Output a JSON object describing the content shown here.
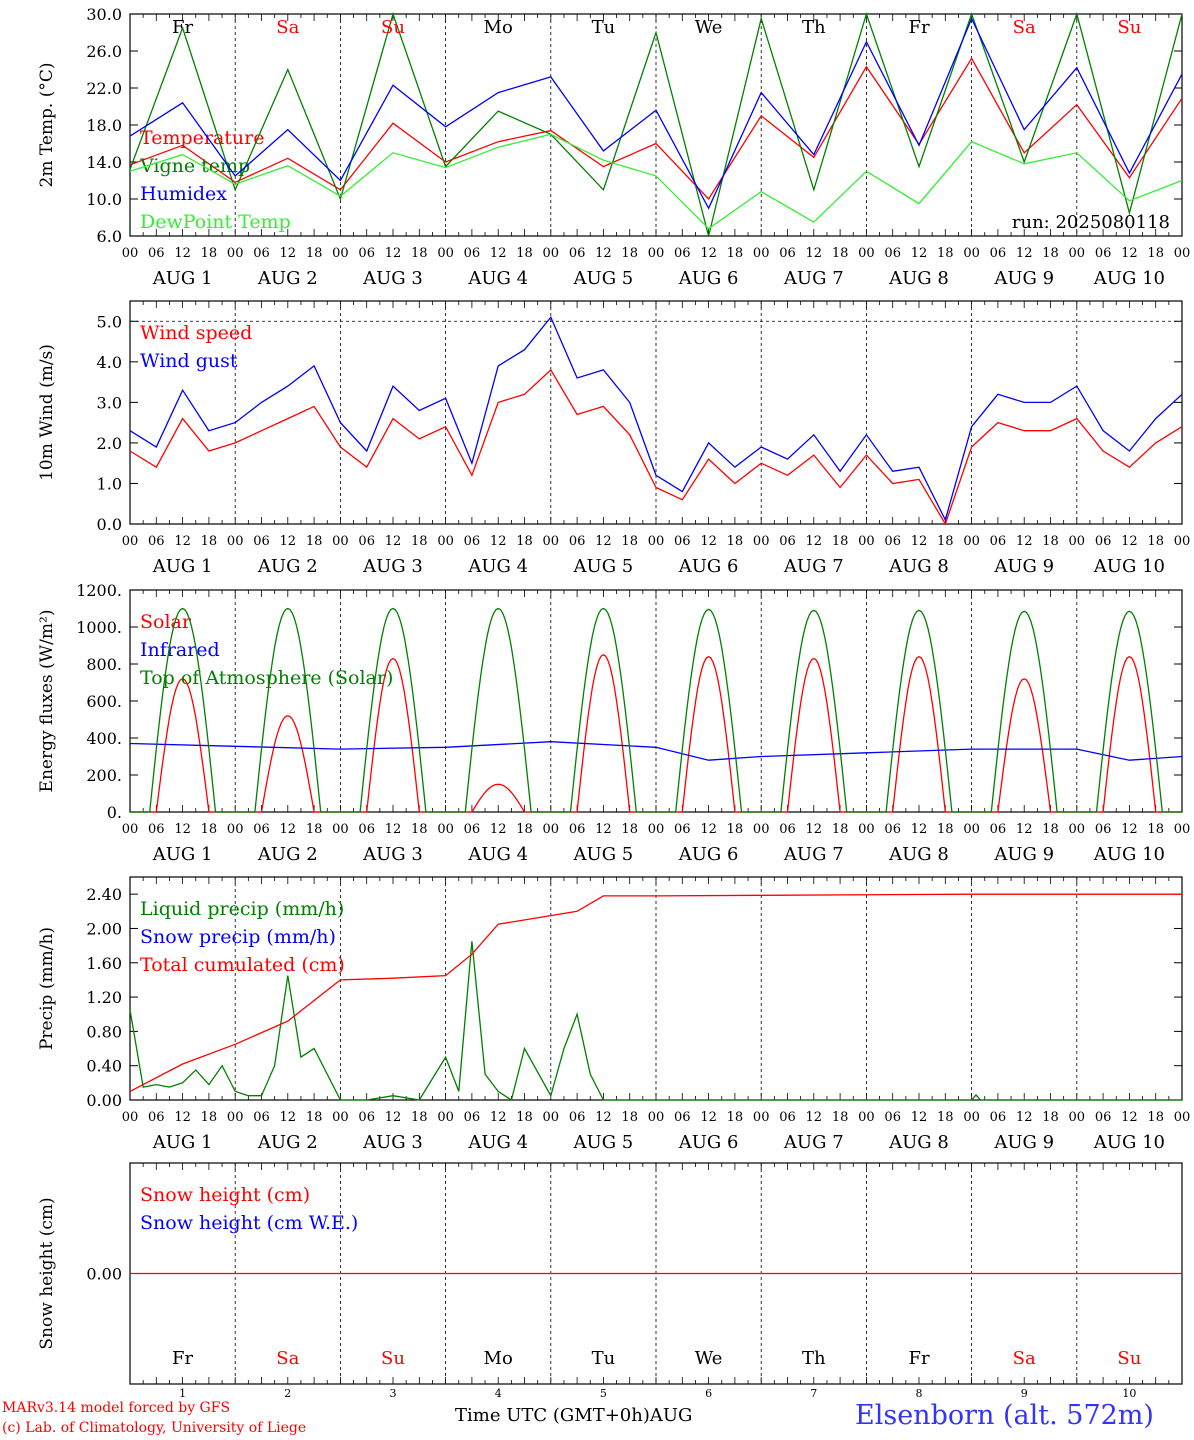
{
  "chart_data": {
    "type": "line",
    "run_label": "run: 2025080118",
    "x_hour_ticks": [
      "00",
      "06",
      "12",
      "18"
    ],
    "month": "AUG",
    "days": [
      {
        "date": "1",
        "weekday": "Fr",
        "weekend": false
      },
      {
        "date": "2",
        "weekday": "Sa",
        "weekend": true
      },
      {
        "date": "3",
        "weekday": "Su",
        "weekend": true
      },
      {
        "date": "4",
        "weekday": "Mo",
        "weekend": false
      },
      {
        "date": "5",
        "weekday": "Tu",
        "weekend": false
      },
      {
        "date": "6",
        "weekday": "We",
        "weekend": false
      },
      {
        "date": "7",
        "weekday": "Th",
        "weekend": false
      },
      {
        "date": "8",
        "weekday": "Fr",
        "weekend": false
      },
      {
        "date": "9",
        "weekday": "Sa",
        "weekend": true
      },
      {
        "date": "10",
        "weekday": "Su",
        "weekend": true
      }
    ],
    "colors": {
      "red": "#ff0000",
      "green": "#008000",
      "blue": "#0000ff",
      "lightgreen": "#33ee33",
      "weekend": "#ff0000"
    },
    "panels": [
      {
        "id": "temp",
        "ylabel": "2m Temp. (°C)",
        "ylim": [
          6,
          30
        ],
        "yticks": [
          "6.0",
          "10.0",
          "14.0",
          "18.0",
          "22.0",
          "26.0",
          "30.0"
        ],
        "ytick_values": [
          6,
          10,
          14,
          18,
          22,
          26,
          30
        ],
        "show_weekdays_top": true,
        "series": [
          {
            "name": "Temperature",
            "color": "#ff0000",
            "hours": [
              0,
              12,
              24,
              36,
              48,
              60,
              72,
              84,
              96,
              108,
              120,
              132,
              144,
              156,
              168,
              180,
              192,
              204,
              216,
              228,
              240
            ],
            "values": [
              13.7,
              15.8,
              11.8,
              14.4,
              11.0,
              18.2,
              14.0,
              16.2,
              17.4,
              13.5,
              16.0,
              10.0,
              19.0,
              14.5,
              24.3,
              15.9,
              25.2,
              15.0,
              20.2,
              12.3,
              20.9
            ]
          },
          {
            "name": "Vigne temp",
            "color": "#008000",
            "hours": [
              0,
              12,
              24,
              36,
              48,
              60,
              72,
              84,
              96,
              108,
              120,
              132,
              144,
              156,
              168,
              180,
              192,
              204,
              216,
              228,
              240
            ],
            "values": [
              13.2,
              28.5,
              11.0,
              24.0,
              10.0,
              30.0,
              13.5,
              19.5,
              17.0,
              11.0,
              28.0,
              6.0,
              29.5,
              11.0,
              30.0,
              13.5,
              30.0,
              14.0,
              30.0,
              8.5,
              30.0
            ]
          },
          {
            "name": "Humidex",
            "color": "#0000ff",
            "hours": [
              0,
              12,
              24,
              36,
              48,
              60,
              72,
              84,
              96,
              108,
              120,
              132,
              144,
              156,
              168,
              180,
              192,
              204,
              216,
              228,
              240
            ],
            "values": [
              16.8,
              20.4,
              12.5,
              17.5,
              12.0,
              22.3,
              17.8,
              21.5,
              23.2,
              15.2,
              19.6,
              9.0,
              21.5,
              14.8,
              27.0,
              15.8,
              29.5,
              17.5,
              24.2,
              12.8,
              23.5
            ]
          },
          {
            "name": "DewPoint Temp",
            "color": "#33ee33",
            "hours": [
              0,
              12,
              24,
              36,
              48,
              60,
              72,
              84,
              96,
              108,
              120,
              132,
              144,
              156,
              168,
              180,
              192,
              204,
              216,
              228,
              240
            ],
            "values": [
              13.0,
              14.8,
              11.6,
              13.6,
              10.3,
              15.0,
              13.4,
              15.6,
              17.0,
              14.2,
              12.5,
              6.8,
              10.8,
              7.5,
              13.0,
              9.5,
              16.2,
              13.8,
              15.0,
              9.8,
              12.0
            ]
          }
        ]
      },
      {
        "id": "wind",
        "ylabel": "10m Wind (m/s)",
        "ylim": [
          0,
          5.5
        ],
        "yticks": [
          "0.0",
          "1.0",
          "2.0",
          "3.0",
          "4.0",
          "5.0"
        ],
        "ytick_values": [
          0,
          1,
          2,
          3,
          4,
          5
        ],
        "ref_line": 5.0,
        "series": [
          {
            "name": "Wind speed",
            "color": "#ff0000",
            "hours": [
              0,
              6,
              12,
              18,
              24,
              30,
              36,
              42,
              48,
              54,
              60,
              66,
              72,
              78,
              84,
              90,
              96,
              102,
              108,
              114,
              120,
              126,
              132,
              138,
              144,
              150,
              156,
              162,
              168,
              174,
              180,
              186,
              192,
              198,
              204,
              210,
              216,
              222,
              228,
              234,
              240
            ],
            "values": [
              1.8,
              1.4,
              2.6,
              1.8,
              2.0,
              2.3,
              2.6,
              2.9,
              1.9,
              1.4,
              2.6,
              2.1,
              2.4,
              1.2,
              3.0,
              3.2,
              3.8,
              2.7,
              2.9,
              2.2,
              0.9,
              0.6,
              1.6,
              1.0,
              1.5,
              1.2,
              1.7,
              0.9,
              1.7,
              1.0,
              1.1,
              0.0,
              1.9,
              2.5,
              2.3,
              2.3,
              2.6,
              1.8,
              1.4,
              2.0,
              2.4
            ]
          },
          {
            "name": "Wind gust",
            "color": "#0000ff",
            "hours": [
              0,
              6,
              12,
              18,
              24,
              30,
              36,
              42,
              48,
              54,
              60,
              66,
              72,
              78,
              84,
              90,
              96,
              102,
              108,
              114,
              120,
              126,
              132,
              138,
              144,
              150,
              156,
              162,
              168,
              174,
              180,
              186,
              192,
              198,
              204,
              210,
              216,
              222,
              228,
              234,
              240
            ],
            "values": [
              2.3,
              1.9,
              3.3,
              2.3,
              2.5,
              3.0,
              3.4,
              3.9,
              2.5,
              1.8,
              3.4,
              2.8,
              3.1,
              1.5,
              3.9,
              4.3,
              5.1,
              3.6,
              3.8,
              3.0,
              1.2,
              0.8,
              2.0,
              1.4,
              1.9,
              1.6,
              2.2,
              1.3,
              2.2,
              1.3,
              1.4,
              0.1,
              2.4,
              3.2,
              3.0,
              3.0,
              3.4,
              2.3,
              1.8,
              2.6,
              3.2
            ]
          }
        ]
      },
      {
        "id": "energy",
        "ylabel": "Energy fluxes (W/m²)",
        "ylim": [
          0,
          1200
        ],
        "yticks": [
          "0.",
          "200.",
          "400.",
          "600.",
          "800.",
          "1000.",
          "1200."
        ],
        "ytick_values": [
          0,
          200,
          400,
          600,
          800,
          1000,
          1200
        ],
        "series": [
          {
            "name": "Solar",
            "color": "#ff0000",
            "peaks": [
              720,
              520,
              830,
              150,
              850,
              840,
              830,
              840,
              720,
              840
            ]
          },
          {
            "name": "Infrared",
            "color": "#0000ff",
            "hours": [
              0,
              24,
              48,
              72,
              96,
              120,
              132,
              144,
              168,
              192,
              216,
              228,
              240
            ],
            "values": [
              370,
              355,
              340,
              350,
              380,
              350,
              280,
              300,
              320,
              340,
              340,
              280,
              300
            ]
          },
          {
            "name": "Top of Atmosphere (Solar)",
            "color": "#008000",
            "peaks": [
              1100,
              1100,
              1100,
              1100,
              1100,
              1095,
              1090,
              1090,
              1085,
              1085
            ]
          }
        ]
      },
      {
        "id": "precip",
        "ylabel": "Precip (mm/h)",
        "ylim": [
          0,
          2.6
        ],
        "yticks": [
          "0.00",
          "0.40",
          "0.80",
          "1.20",
          "1.60",
          "2.00",
          "2.40"
        ],
        "ytick_values": [
          0,
          0.4,
          0.8,
          1.2,
          1.6,
          2.0,
          2.4
        ],
        "series": [
          {
            "name": "Liquid precip (mm/h)",
            "color": "#008000",
            "hours": [
              0,
              3,
              6,
              9,
              12,
              15,
              18,
              21,
              24,
              27,
              30,
              33,
              36,
              39,
              42,
              48,
              54,
              60,
              66,
              72,
              75,
              78,
              81,
              84,
              87,
              90,
              96,
              99,
              102,
              105,
              108,
              120,
              192,
              193,
              194,
              240
            ],
            "values": [
              1.05,
              0.15,
              0.18,
              0.15,
              0.2,
              0.35,
              0.18,
              0.4,
              0.1,
              0.05,
              0.05,
              0.4,
              1.45,
              0.5,
              0.6,
              0.0,
              0.0,
              0.05,
              0.0,
              0.5,
              0.1,
              1.85,
              0.3,
              0.1,
              0.0,
              0.6,
              0.05,
              0.6,
              1.0,
              0.3,
              0.0,
              0.0,
              0.0,
              0.06,
              0.0,
              0.0
            ]
          },
          {
            "name": "Snow precip (mm/h)",
            "color": "#0000ff",
            "hours": [],
            "values": []
          },
          {
            "name": "Total cumulated (cm)",
            "color": "#ff0000",
            "hours": [
              0,
              12,
              24,
              36,
              48,
              60,
              72,
              78,
              84,
              96,
              102,
              108,
              120,
              192,
              240
            ],
            "values": [
              0.1,
              0.42,
              0.65,
              0.92,
              1.4,
              1.42,
              1.45,
              1.7,
              2.05,
              2.15,
              2.2,
              2.38,
              2.38,
              2.4,
              2.4
            ]
          }
        ]
      },
      {
        "id": "snow",
        "ylabel": "Snow height (cm)",
        "ylim": [
          -1,
          1
        ],
        "yticks": [
          "0.00"
        ],
        "ytick_values": [
          0
        ],
        "show_weekdays_bottom": true,
        "series": [
          {
            "name": "Snow height (cm)",
            "color": "#ff0000",
            "hours": [
              0,
              240
            ],
            "values": [
              0,
              0
            ]
          },
          {
            "name": "Snow height (cm W.E.)",
            "color": "#0000ff",
            "hours": [],
            "values": []
          }
        ]
      }
    ]
  },
  "footer": {
    "model": "MARv3.14 model forced by GFS",
    "lab": "(c) Lab. of Climatology, University of Liege",
    "time_axis": "Time UTC (GMT+0h)AUG",
    "station": "Elsenborn (alt. 572m)"
  }
}
